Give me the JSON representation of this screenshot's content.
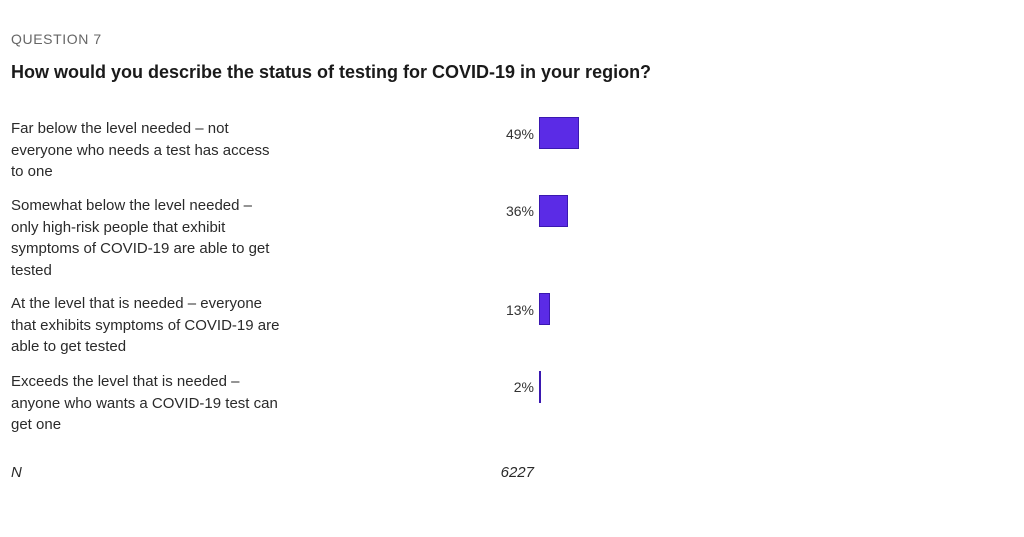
{
  "question": {
    "number": "QUESTION 7",
    "title": "How would you describe the status of testing for COVID-19 in your region?"
  },
  "colors": {
    "bar": "#5b2be6",
    "bar_border": "#3a18b0"
  },
  "chart_data": {
    "type": "bar",
    "orientation": "horizontal",
    "categories": [
      "Far below the level needed – not everyone who needs a test has access to one",
      "Somewhat below the level needed – only high-risk people that exhibit symptoms of COVID-19 are able to get tested",
      "At the level that is needed – everyone that exhibits symptoms of COVID-19 are able to get tested",
      "Exceeds the level that is needed – anyone who wants a COVID-19 test can get one"
    ],
    "values": [
      49,
      36,
      13,
      2
    ],
    "value_labels": [
      "49%",
      "36%",
      "13%",
      "2%"
    ],
    "xlim": [
      0,
      100
    ],
    "grid": false,
    "n_label": "N",
    "n_value": "6227"
  }
}
